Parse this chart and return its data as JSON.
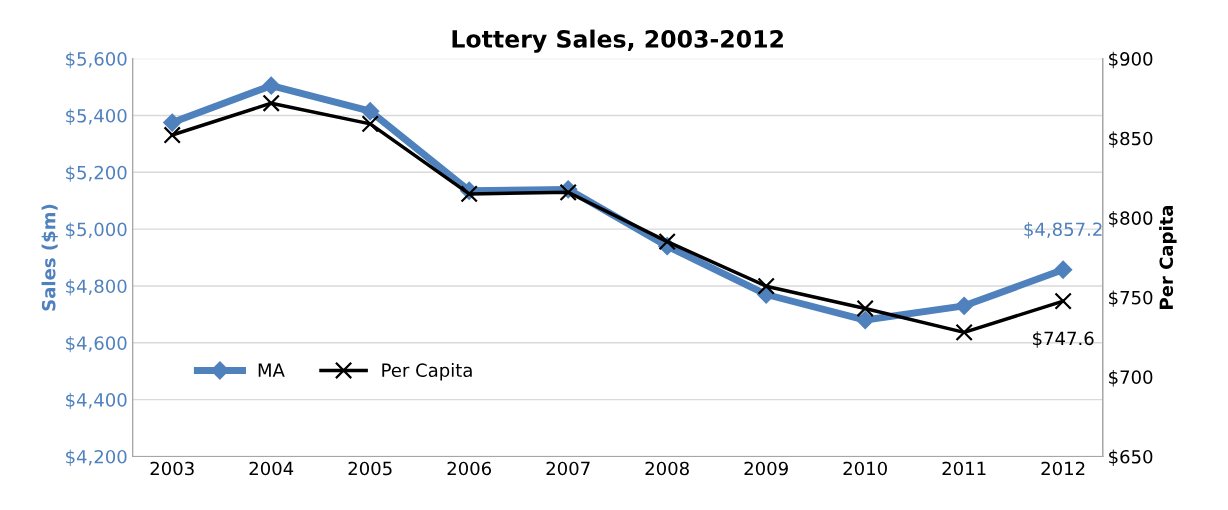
{
  "chart_data": {
    "type": "line",
    "title": "Lottery Sales, 2003-2012",
    "categories": [
      "2003",
      "2004",
      "2005",
      "2006",
      "2007",
      "2008",
      "2009",
      "2010",
      "2011",
      "2012"
    ],
    "series": [
      {
        "name": "MA",
        "color": "#4f81bd",
        "marker": "diamond",
        "values": [
          5375,
          5505,
          5415,
          5135,
          5140,
          4940,
          4770,
          4680,
          4730,
          4857.2
        ],
        "value_labels": [
          null,
          null,
          null,
          null,
          null,
          null,
          null,
          null,
          null,
          "$4,857.2"
        ]
      },
      {
        "name": "Per Capita",
        "color": "#000000",
        "marker": "cross",
        "axis": "y2",
        "values": [
          852,
          872,
          859,
          815,
          816,
          785,
          757,
          743,
          728,
          747.6
        ],
        "value_labels": [
          null,
          null,
          null,
          null,
          null,
          null,
          null,
          null,
          null,
          "$747.6"
        ]
      }
    ],
    "ylabel": "Sales ($m)",
    "y2label": "Per Capita",
    "ylim": [
      4200,
      5600
    ],
    "yticks": [
      {
        "value": 4200,
        "label": "$4,200"
      },
      {
        "value": 4400,
        "label": "$4,400"
      },
      {
        "value": 4600,
        "label": "$4,600"
      },
      {
        "value": 4800,
        "label": "$4,800"
      },
      {
        "value": 5000,
        "label": "$5,000"
      },
      {
        "value": 5200,
        "label": "$5,200"
      },
      {
        "value": 5400,
        "label": "$5,400"
      },
      {
        "value": 5600,
        "label": "$5,600"
      }
    ],
    "y2lim": [
      650,
      900
    ],
    "y2ticks": [
      {
        "value": 650,
        "label": "$650"
      },
      {
        "value": 700,
        "label": "$700"
      },
      {
        "value": 750,
        "label": "$750"
      },
      {
        "value": 800,
        "label": "$800"
      },
      {
        "value": 850,
        "label": "$850"
      },
      {
        "value": 900,
        "label": "$900"
      }
    ],
    "grid": "y",
    "legend": "bottom left",
    "line_style": "solid"
  }
}
